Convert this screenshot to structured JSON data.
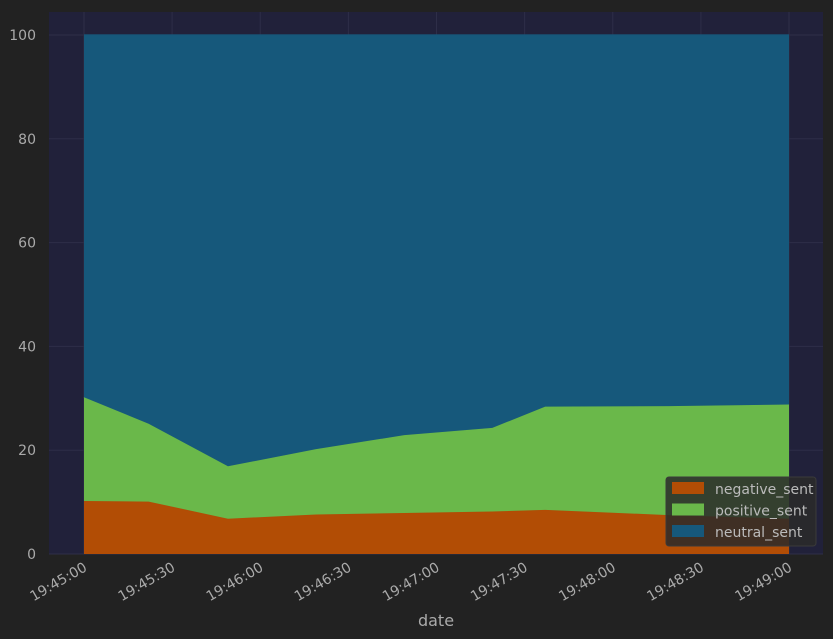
{
  "chart_data": {
    "type": "area",
    "stacked": true,
    "xlabel": "date",
    "ylabel": "",
    "ylim": [
      0,
      100
    ],
    "xlim": [
      "19:45:00",
      "19:49:00"
    ],
    "x_ticks": [
      "19:45:00",
      "19:45:30",
      "19:46:00",
      "19:46:30",
      "19:47:00",
      "19:47:30",
      "19:48:00",
      "19:48:30",
      "19:49:00"
    ],
    "y_ticks": [
      0,
      20,
      40,
      60,
      80,
      100
    ],
    "grid": true,
    "legend_position": "bottom-right",
    "x": [
      "19:45:00",
      "19:45:22",
      "19:45:49",
      "19:46:19",
      "19:46:49",
      "19:47:19",
      "19:47:37",
      "19:48:19",
      "19:49:00"
    ],
    "series": [
      {
        "name": "negative_sent",
        "color": "#b24d05",
        "values": [
          10.2,
          10.1,
          6.8,
          7.6,
          7.9,
          8.2,
          8.5,
          7.5,
          6.8
        ]
      },
      {
        "name": "positive_sent",
        "color": "#6ab84a",
        "values": [
          20.0,
          15.0,
          10.1,
          12.6,
          15.0,
          16.1,
          19.9,
          21.0,
          22.0
        ]
      },
      {
        "name": "neutral_sent",
        "color": "#16587b",
        "values": [
          69.8,
          74.9,
          83.1,
          79.8,
          77.1,
          75.7,
          71.6,
          71.5,
          71.2
        ]
      }
    ]
  },
  "colors": {
    "background": "#222222",
    "plot_background": "#21213a",
    "grid": "#2e2e48",
    "text": "#aaaaaa"
  }
}
